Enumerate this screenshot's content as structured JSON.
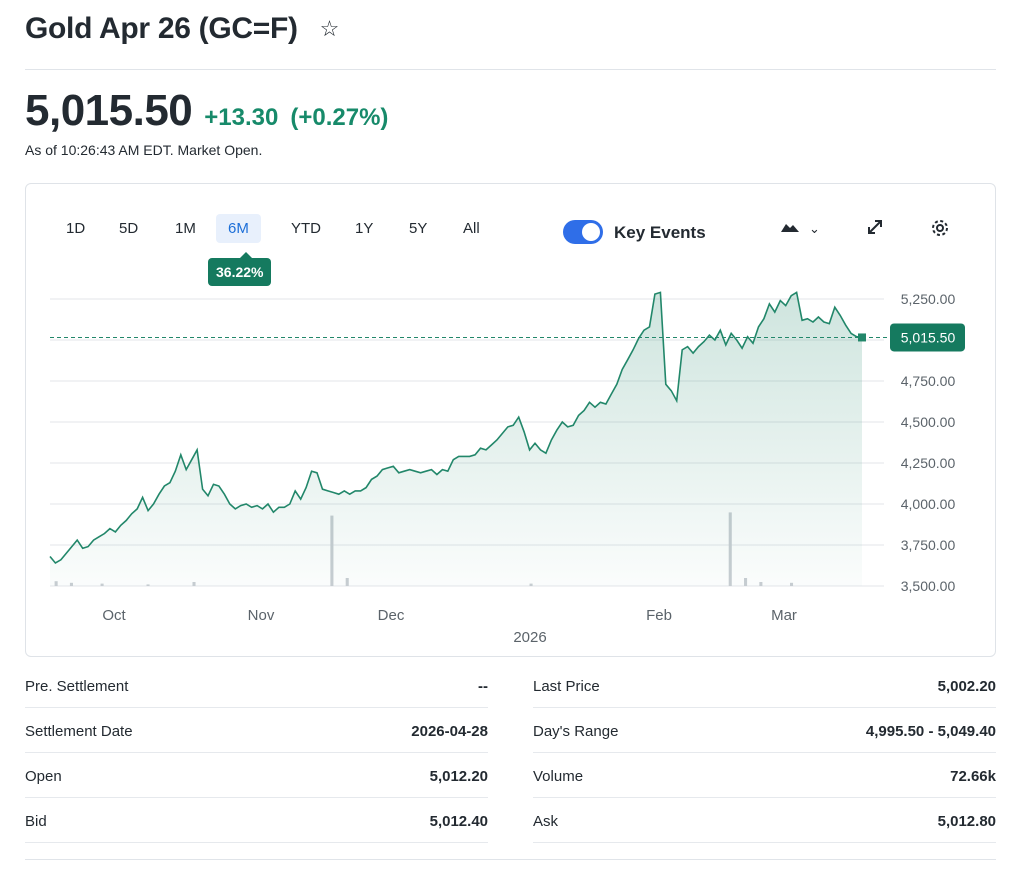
{
  "header": {
    "title": "Gold Apr 26 (GC=F)",
    "star_icon": "star-icon"
  },
  "quote": {
    "price": "5,015.50",
    "change": "+13.30",
    "change_pct": "(+0.27%)",
    "as_of": "As of 10:26:43 AM EDT. Market Open.",
    "positive_color": "#178a6a"
  },
  "chart_controls": {
    "ranges": [
      "1D",
      "5D",
      "1M",
      "6M",
      "YTD",
      "1Y",
      "5Y",
      "All"
    ],
    "active_range": "6M",
    "performance_badge": "36.22%",
    "key_events_label": "Key Events",
    "key_events_on": true,
    "chart_type_icon": "mountain-chart-icon",
    "dropdown_icon": "chevron-down-icon",
    "expand_icon": "expand-icon",
    "settings_icon": "gear-icon"
  },
  "chart_data": {
    "type": "area",
    "y_ticks": [
      "5,250.00",
      "5,000.00",
      "4,750.00",
      "4,500.00",
      "4,250.00",
      "4,000.00",
      "3,750.00",
      "3,500.00"
    ],
    "ylim": [
      3500,
      5250
    ],
    "x_ticks": [
      "Oct",
      "Nov",
      "Dec",
      "Feb",
      "Mar"
    ],
    "x_year_label": "2026",
    "current_value": 5015.5,
    "current_label": "5,015.50",
    "series": [
      {
        "values": [
          3680,
          3640,
          3660,
          3700,
          3740,
          3780,
          3730,
          3740,
          3780,
          3800,
          3820,
          3850,
          3830,
          3870,
          3900,
          3940,
          3970,
          4040,
          3960,
          4000,
          4060,
          4110,
          4130,
          4200,
          4300,
          4210,
          4270,
          4330,
          4090,
          4050,
          4120,
          4110,
          4060,
          4000,
          3970,
          3990,
          4000,
          3980,
          3990,
          3970,
          4000,
          3950,
          3980,
          3980,
          4000,
          4080,
          4030,
          4100,
          4200,
          4190,
          4090,
          4080,
          4070,
          4060,
          4080,
          4060,
          4080,
          4080,
          4100,
          4150,
          4170,
          4210,
          4220,
          4230,
          4190,
          4200,
          4210,
          4200,
          4190,
          4200,
          4210,
          4180,
          4210,
          4200,
          4270,
          4290,
          4290,
          4290,
          4300,
          4340,
          4330,
          4360,
          4390,
          4430,
          4470,
          4480,
          4530,
          4440,
          4330,
          4370,
          4330,
          4310,
          4390,
          4450,
          4500,
          4470,
          4480,
          4540,
          4570,
          4620,
          4590,
          4620,
          4610,
          4670,
          4730,
          4820,
          4880,
          4940,
          5010,
          5060,
          5080,
          5280,
          5290,
          4730,
          4690,
          4630,
          4940,
          4960,
          4920,
          4960,
          4990,
          5030,
          5000,
          5060,
          4970,
          5040,
          5000,
          4950,
          5020,
          4980,
          5080,
          5130,
          5220,
          5170,
          5240,
          5210,
          5270,
          5290,
          5120,
          5130,
          5110,
          5140,
          5110,
          5100,
          5200,
          5150,
          5090,
          5040,
          5020,
          5015.5
        ]
      }
    ],
    "volume": [
      6,
      4,
      0,
      3,
      0,
      0,
      2,
      0,
      0,
      5,
      0,
      0,
      0,
      0,
      0,
      0,
      0,
      0,
      88,
      10,
      0,
      0,
      0,
      0,
      0,
      0,
      0,
      0,
      0,
      0,
      0,
      3,
      0,
      0,
      0,
      0,
      0,
      0,
      0,
      0,
      0,
      0,
      0,
      0,
      92,
      10,
      5,
      0,
      4,
      0,
      0,
      0,
      0
    ],
    "line_color": "#22876a"
  },
  "stats": [
    {
      "label": "Pre. Settlement",
      "value": "--"
    },
    {
      "label": "Last Price",
      "value": "5,002.20"
    },
    {
      "label": "Settlement Date",
      "value": "2026-04-28"
    },
    {
      "label": "Day's Range",
      "value": "4,995.50 - 5,049.40"
    },
    {
      "label": "Open",
      "value": "5,012.20"
    },
    {
      "label": "Volume",
      "value": "72.66k"
    },
    {
      "label": "Bid",
      "value": "5,012.40"
    },
    {
      "label": "Ask",
      "value": "5,012.80"
    }
  ]
}
